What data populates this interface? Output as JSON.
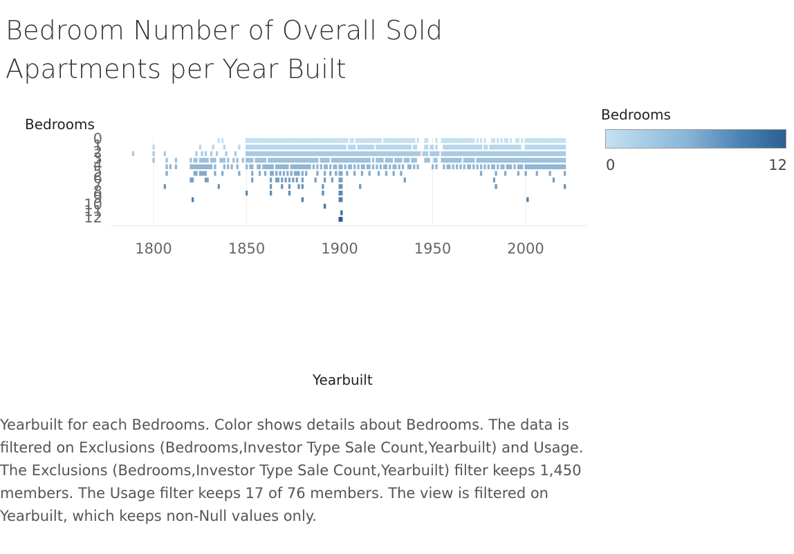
{
  "title": "Bedroom Number of Overall Sold Apartments per Year Built",
  "caption": "Yearbuilt for each Bedrooms.  Color shows details about Bedrooms. The data is filtered on Exclusions (Bedrooms,Investor Type Sale Count,Yearbuilt) and Usage. The Exclusions (Bedrooms,Investor Type Sale Count,Yearbuilt) filter keeps 1,450 members. The Usage filter keeps 17 of 76 members. The view is filtered on Yearbuilt, which keeps non-Null values only.",
  "legend": {
    "title": "Bedrooms",
    "min_label": "0",
    "max_label": "12",
    "color_low": "#c4e1f4",
    "color_high": "#2b5f91"
  },
  "chart_data": {
    "type": "heatmap",
    "xlabel": "Yearbuilt",
    "ylabel": "Bedrooms",
    "xlim": [
      1775,
      2030
    ],
    "x_ticks": [
      1800,
      1850,
      1900,
      1950,
      2000
    ],
    "grid": "vertical lines at x ticks",
    "y_tick_labels": [
      "0",
      "1",
      "2",
      "3",
      "4",
      "5",
      "6",
      "7",
      "8",
      "9",
      "10",
      "11",
      "12"
    ],
    "color_range": [
      0,
      12
    ],
    "series": [
      {
        "bedrooms": 0,
        "years": [
          1835,
          1837,
          1850,
          1851,
          1852,
          1853,
          1854,
          1855,
          1856,
          1857,
          1858,
          1859,
          1860,
          1861,
          1862,
          1863,
          1864,
          1865,
          1866,
          1867,
          1868,
          1869,
          1870,
          1871,
          1872,
          1873,
          1874,
          1875,
          1876,
          1877,
          1878,
          1879,
          1880,
          1881,
          1882,
          1883,
          1884,
          1885,
          1886,
          1887,
          1888,
          1889,
          1890,
          1891,
          1892,
          1893,
          1894,
          1895,
          1896,
          1897,
          1898,
          1899,
          1900,
          1901,
          1902,
          1903,
          1904,
          1906,
          1907,
          1909,
          1910,
          1911,
          1912,
          1913,
          1914,
          1915,
          1916,
          1917,
          1918,
          1919,
          1920,
          1921,
          1922,
          1924,
          1925,
          1926,
          1927,
          1928,
          1929,
          1930,
          1931,
          1932,
          1933,
          1934,
          1935,
          1936,
          1937,
          1938,
          1939,
          1940,
          1942,
          1946,
          1947,
          1952,
          1955,
          1956,
          1957,
          1958,
          1959,
          1960,
          1961,
          1962,
          1963,
          1964,
          1965,
          1966,
          1967,
          1968,
          1969,
          1970,
          1971,
          1972,
          1974,
          1976,
          1978,
          1982,
          1983,
          1985,
          1987,
          1989,
          1990,
          1992,
          1995,
          1996,
          1998,
          2000,
          2001,
          2002,
          2003,
          2004,
          2005,
          2006,
          2007,
          2008,
          2009,
          2010,
          2011,
          2012,
          2013,
          2014,
          2015,
          2016,
          2017,
          2018,
          2019,
          2020,
          2021
        ]
      },
      {
        "bedrooms": 1,
        "years": [
          1800,
          1825,
          1832,
          1838,
          1846,
          1850,
          1851,
          1852,
          1853,
          1854,
          1855,
          1856,
          1857,
          1858,
          1859,
          1860,
          1861,
          1862,
          1863,
          1864,
          1865,
          1866,
          1867,
          1868,
          1869,
          1870,
          1871,
          1872,
          1873,
          1874,
          1875,
          1876,
          1877,
          1878,
          1879,
          1880,
          1881,
          1882,
          1883,
          1884,
          1885,
          1886,
          1887,
          1888,
          1889,
          1890,
          1891,
          1892,
          1893,
          1894,
          1895,
          1896,
          1897,
          1898,
          1899,
          1900,
          1901,
          1902,
          1903,
          1905,
          1906,
          1907,
          1908,
          1910,
          1911,
          1912,
          1913,
          1914,
          1915,
          1916,
          1917,
          1918,
          1920,
          1921,
          1922,
          1923,
          1924,
          1925,
          1926,
          1927,
          1928,
          1929,
          1930,
          1931,
          1932,
          1933,
          1934,
          1935,
          1936,
          1937,
          1938,
          1940,
          1941,
          1946,
          1947,
          1949,
          1950,
          1952,
          1956,
          1957,
          1958,
          1959,
          1960,
          1961,
          1962,
          1963,
          1964,
          1965,
          1966,
          1967,
          1968,
          1969,
          1970,
          1971,
          1972,
          1973,
          1974,
          1975,
          1976,
          1978,
          1979,
          1981,
          1982,
          1983,
          1984,
          1985,
          1986,
          1987,
          1988,
          1989,
          1990,
          1991,
          1992,
          1993,
          1994,
          1995,
          1996,
          1997,
          2000,
          2001,
          2002,
          2003,
          2004,
          2005,
          2006,
          2007,
          2008,
          2009,
          2010,
          2011,
          2012,
          2013,
          2014,
          2015,
          2016,
          2017,
          2018,
          2019,
          2020,
          2021
        ]
      },
      {
        "bedrooms": 2,
        "years": [
          1789,
          1800,
          1806,
          1823,
          1826,
          1828,
          1831,
          1834,
          1839,
          1844,
          1850,
          1851,
          1852,
          1853,
          1854,
          1855,
          1856,
          1857,
          1858,
          1859,
          1860,
          1861,
          1862,
          1863,
          1864,
          1865,
          1866,
          1867,
          1868,
          1869,
          1870,
          1871,
          1872,
          1873,
          1874,
          1875,
          1876,
          1877,
          1878,
          1879,
          1880,
          1881,
          1882,
          1883,
          1884,
          1885,
          1886,
          1887,
          1888,
          1889,
          1890,
          1891,
          1892,
          1893,
          1894,
          1895,
          1896,
          1897,
          1898,
          1899,
          1900,
          1901,
          1902,
          1903,
          1904,
          1905,
          1906,
          1907,
          1908,
          1909,
          1910,
          1911,
          1912,
          1913,
          1914,
          1915,
          1916,
          1917,
          1918,
          1919,
          1920,
          1921,
          1922,
          1923,
          1924,
          1925,
          1926,
          1927,
          1928,
          1929,
          1930,
          1931,
          1932,
          1933,
          1934,
          1935,
          1936,
          1937,
          1938,
          1939,
          1940,
          1941,
          1942,
          1943,
          1945,
          1946,
          1947,
          1949,
          1950,
          1951,
          1952,
          1953,
          1955,
          1956,
          1957,
          1958,
          1959,
          1960,
          1961,
          1962,
          1963,
          1964,
          1965,
          1966,
          1967,
          1968,
          1969,
          1970,
          1971,
          1972,
          1973,
          1974,
          1975,
          1976,
          1977,
          1978,
          1979,
          1980,
          1981,
          1982,
          1983,
          1984,
          1985,
          1986,
          1987,
          1988,
          1989,
          1990,
          1991,
          1992,
          1993,
          1994,
          1995,
          1996,
          1997,
          1998,
          1999,
          2000,
          2001,
          2002,
          2003,
          2004,
          2005,
          2006,
          2007,
          2008,
          2009,
          2010,
          2011,
          2012,
          2013,
          2014,
          2015,
          2016,
          2017,
          2018,
          2019,
          2020,
          2021
        ]
      },
      {
        "bedrooms": 3,
        "years": [
          1800,
          1807,
          1812,
          1820,
          1822,
          1823,
          1825,
          1826,
          1827,
          1828,
          1829,
          1831,
          1832,
          1833,
          1836,
          1837,
          1838,
          1840,
          1843,
          1845,
          1848,
          1850,
          1851,
          1852,
          1853,
          1855,
          1856,
          1857,
          1858,
          1859,
          1860,
          1862,
          1863,
          1864,
          1865,
          1866,
          1867,
          1868,
          1869,
          1870,
          1871,
          1872,
          1873,
          1874,
          1875,
          1876,
          1877,
          1878,
          1879,
          1880,
          1881,
          1882,
          1883,
          1884,
          1885,
          1886,
          1887,
          1888,
          1890,
          1891,
          1892,
          1893,
          1894,
          1896,
          1897,
          1898,
          1899,
          1900,
          1901,
          1902,
          1903,
          1904,
          1905,
          1906,
          1907,
          1908,
          1909,
          1910,
          1911,
          1912,
          1913,
          1914,
          1915,
          1916,
          1918,
          1920,
          1921,
          1922,
          1923,
          1925,
          1926,
          1927,
          1928,
          1930,
          1931,
          1932,
          1933,
          1935,
          1936,
          1937,
          1939,
          1940,
          1941,
          1946,
          1947,
          1948,
          1951,
          1952,
          1955,
          1956,
          1957,
          1958,
          1959,
          1960,
          1961,
          1962,
          1963,
          1964,
          1965,
          1967,
          1968,
          1969,
          1970,
          1971,
          1972,
          1974,
          1975,
          1976,
          1977,
          1978,
          1979,
          1980,
          1981,
          1982,
          1983,
          1984,
          1985,
          1986,
          1987,
          1988,
          1989,
          1990,
          1991,
          1992,
          1993,
          1994,
          1995,
          1996,
          1997,
          1998,
          1999,
          2000,
          2001,
          2002,
          2003,
          2004,
          2005,
          2006,
          2007,
          2008,
          2009,
          2010,
          2011,
          2012,
          2013,
          2014,
          2015,
          2016,
          2017,
          2018,
          2019,
          2020,
          2021
        ]
      },
      {
        "bedrooms": 4,
        "years": [
          1807,
          1809,
          1812,
          1820,
          1821,
          1822,
          1823,
          1824,
          1825,
          1826,
          1827,
          1828,
          1829,
          1830,
          1831,
          1833,
          1838,
          1840,
          1842,
          1845,
          1850,
          1852,
          1853,
          1856,
          1857,
          1859,
          1860,
          1861,
          1862,
          1863,
          1864,
          1866,
          1867,
          1868,
          1869,
          1870,
          1871,
          1872,
          1874,
          1875,
          1876,
          1877,
          1878,
          1879,
          1880,
          1881,
          1882,
          1883,
          1884,
          1886,
          1888,
          1890,
          1892,
          1893,
          1895,
          1897,
          1898,
          1900,
          1901,
          1903,
          1905,
          1906,
          1908,
          1910,
          1912,
          1913,
          1915,
          1916,
          1918,
          1920,
          1922,
          1924,
          1925,
          1927,
          1929,
          1930,
          1932,
          1934,
          1937,
          1938,
          1940,
          1942,
          1950,
          1952,
          1956,
          1958,
          1959,
          1961,
          1963,
          1965,
          1967,
          1969,
          1970,
          1972,
          1974,
          1976,
          1978,
          1980,
          1982,
          1983,
          1985,
          1987,
          1988,
          1990,
          1991,
          1992,
          1994,
          1996,
          1997,
          1998,
          2000,
          2001,
          2002,
          2003,
          2004,
          2005,
          2006,
          2007,
          2008,
          2009,
          2010,
          2011,
          2012,
          2013,
          2014,
          2015,
          2016,
          2017,
          2018,
          2019,
          2020,
          2021
        ]
      },
      {
        "bedrooms": 5,
        "years": [
          1807,
          1822,
          1823,
          1825,
          1826,
          1827,
          1828,
          1833,
          1837,
          1846,
          1853,
          1857,
          1860,
          1863,
          1864,
          1866,
          1868,
          1870,
          1872,
          1874,
          1876,
          1877,
          1878,
          1880,
          1882,
          1888,
          1892,
          1895,
          1898,
          1900,
          1901,
          1904,
          1908,
          1912,
          1916,
          1921,
          1925,
          1929,
          1933,
          1976,
          1984,
          1989,
          1996,
          2000,
          2006,
          2013,
          2021
        ]
      },
      {
        "bedrooms": 6,
        "years": [
          1820,
          1821,
          1828,
          1829,
          1853,
          1863,
          1866,
          1867,
          1869,
          1871,
          1873,
          1875,
          1877,
          1880,
          1887,
          1892,
          1896,
          1900,
          1901,
          1935,
          1983,
          2015
        ]
      },
      {
        "bedrooms": 7,
        "years": [
          1806,
          1835,
          1863,
          1869,
          1873,
          1878,
          1880,
          1891,
          1900,
          1901,
          1911,
          1984,
          2021
        ]
      },
      {
        "bedrooms": 8,
        "years": [
          1850,
          1863,
          1873,
          1891,
          1900,
          1901
        ]
      },
      {
        "bedrooms": 9,
        "years": [
          1821,
          1880,
          1900,
          1901,
          2001
        ]
      },
      {
        "bedrooms": 10,
        "years": [
          1892
        ]
      },
      {
        "bedrooms": 11,
        "years": [
          1901
        ]
      },
      {
        "bedrooms": 12,
        "years": [
          1900,
          1901
        ]
      }
    ]
  }
}
